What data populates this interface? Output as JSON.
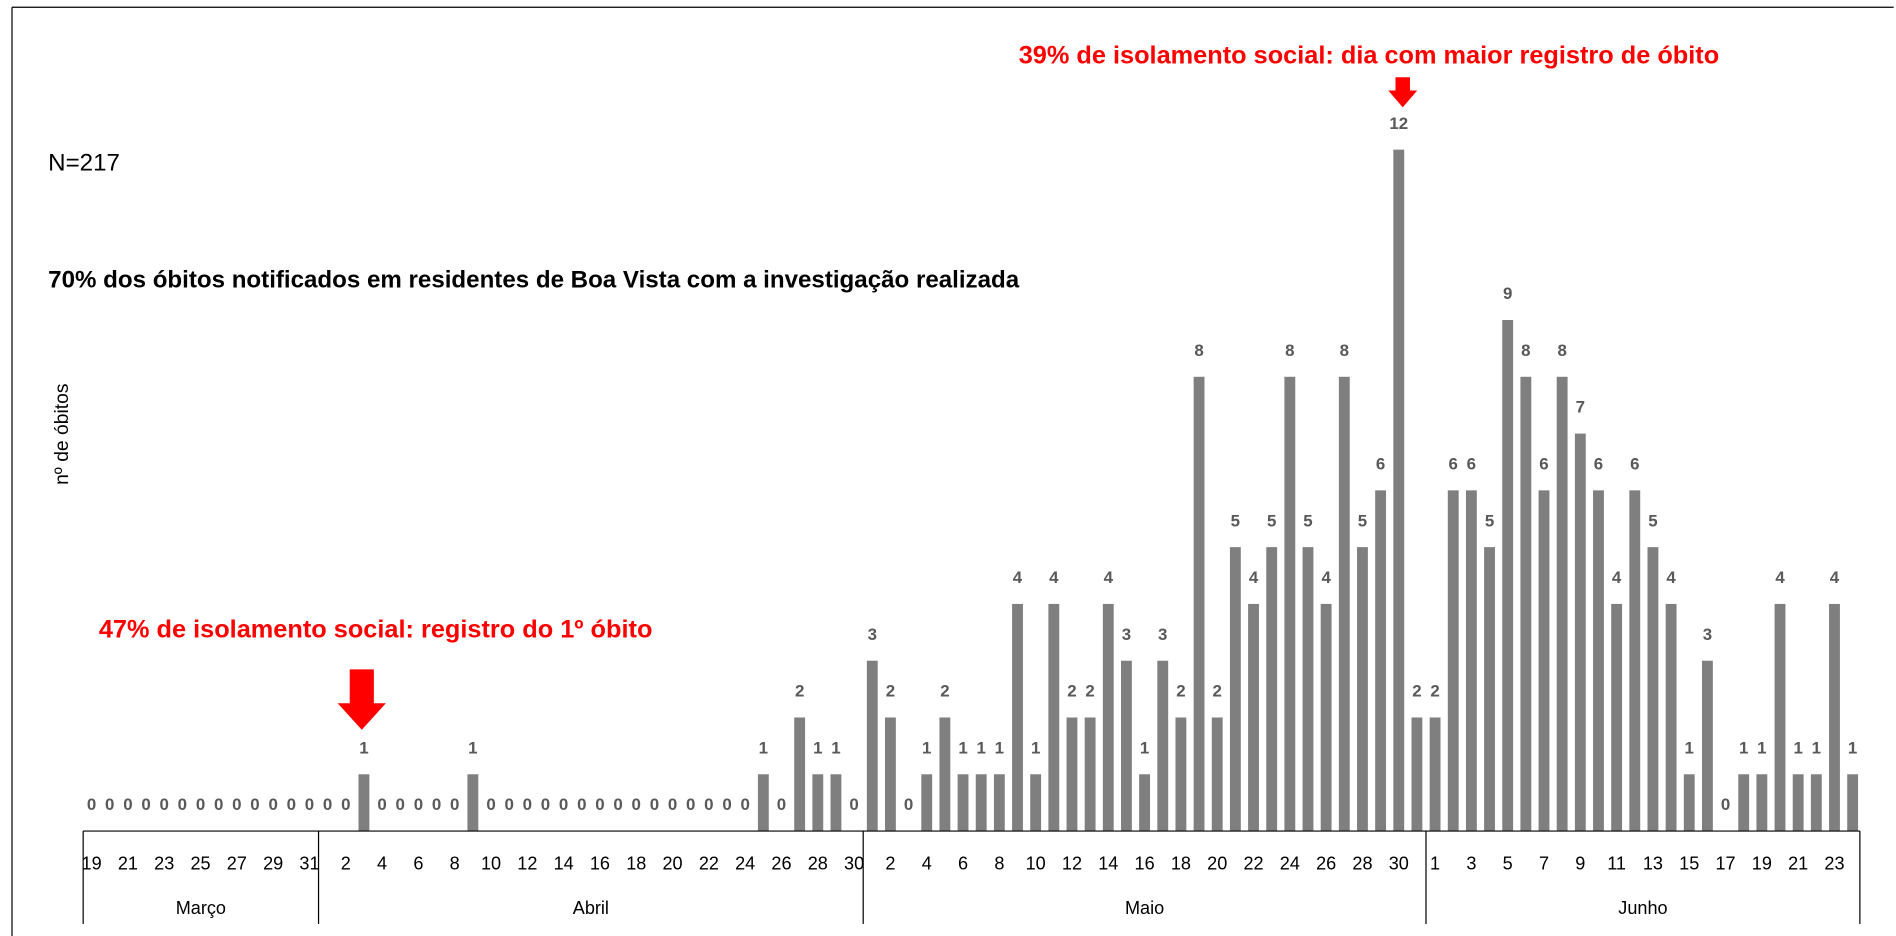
{
  "chart_data": {
    "type": "bar",
    "y_axis_label": "nº de óbitos",
    "annotations": {
      "n": "N=217",
      "subtitle": "70% dos óbitos notificados em residentes de Boa Vista com a investigação realizada",
      "first_death": "47% de isolamento social: registro do 1º óbito",
      "max_death": "39% de isolamento social: dia com maior registro de óbito"
    },
    "months": [
      "Março",
      "Abril",
      "Maio",
      "Junho"
    ],
    "categories": [
      "19",
      null,
      "21",
      null,
      "23",
      null,
      "25",
      null,
      "27",
      null,
      "29",
      null,
      "31",
      null,
      "2",
      null,
      "4",
      null,
      "6",
      null,
      "8",
      null,
      "10",
      null,
      "12",
      null,
      "14",
      null,
      "16",
      null,
      "18",
      null,
      "20",
      null,
      "22",
      null,
      "24",
      null,
      "26",
      null,
      "28",
      null,
      "30",
      null,
      "2",
      null,
      "4",
      null,
      "6",
      null,
      "8",
      null,
      "10",
      null,
      "12",
      null,
      "14",
      null,
      "16",
      null,
      "18",
      null,
      "20",
      null,
      "22",
      null,
      "24",
      null,
      "26",
      null,
      "28",
      null,
      "30",
      null,
      "1",
      null,
      "3",
      null,
      "5",
      null,
      "7",
      null,
      "9",
      null,
      "11",
      null,
      "13",
      null,
      "15",
      null,
      "17",
      null,
      "19",
      null,
      "21",
      null,
      "23",
      null
    ],
    "values": [
      0,
      0,
      0,
      0,
      0,
      0,
      0,
      0,
      0,
      0,
      0,
      0,
      0,
      0,
      0,
      1,
      0,
      0,
      0,
      0,
      0,
      1,
      0,
      0,
      0,
      0,
      0,
      0,
      0,
      0,
      0,
      0,
      0,
      0,
      0,
      0,
      0,
      1,
      0,
      2,
      1,
      1,
      0,
      3,
      2,
      0,
      1,
      2,
      1,
      1,
      1,
      4,
      1,
      4,
      2,
      2,
      4,
      3,
      1,
      3,
      2,
      8,
      2,
      5,
      4,
      5,
      8,
      5,
      4,
      8,
      5,
      6,
      12,
      2,
      2,
      6,
      6,
      5,
      9,
      8,
      6,
      8,
      7,
      6,
      4,
      6,
      5,
      4,
      1,
      3,
      0,
      1,
      1,
      4,
      1,
      1,
      4,
      1
    ],
    "color": "#7f7f7f",
    "ylim": [
      0,
      13
    ]
  }
}
